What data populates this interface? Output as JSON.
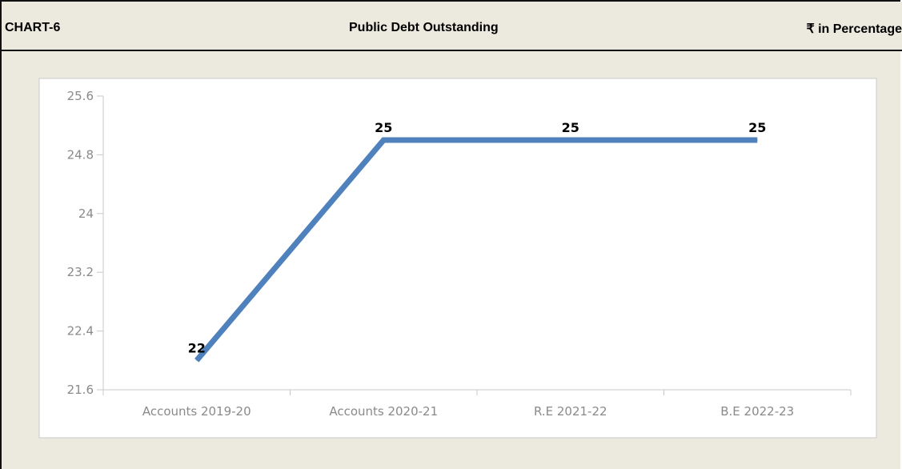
{
  "header": {
    "chart_id": "CHART-6",
    "title": "Public Debt Outstanding",
    "unit": "₹ in Percentage"
  },
  "colors": {
    "line": "#4f81bd",
    "background": "#ece9de",
    "panel": "#ffffff"
  },
  "chart_data": {
    "type": "line",
    "title": "Public Debt Outstanding",
    "xlabel": "",
    "ylabel": "",
    "categories": [
      "Accounts 2019-20",
      "Accounts 2020-21",
      "R.E 2021-22",
      "B.E 2022-23"
    ],
    "series": [
      {
        "values": [
          22,
          25,
          25,
          25
        ],
        "labels": [
          "22",
          "25",
          "25",
          "25"
        ]
      }
    ],
    "yticks": [
      "21.6",
      "22.4",
      "23.2",
      "24",
      "24.8",
      "25.6"
    ],
    "ylim": [
      21.6,
      25.6
    ],
    "grid": false,
    "legend": "none"
  }
}
